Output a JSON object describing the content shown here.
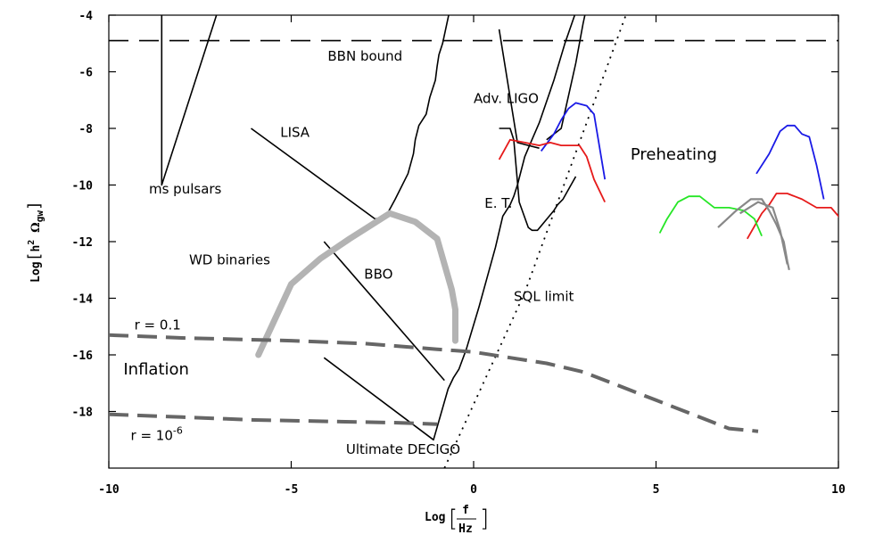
{
  "chart_data": {
    "type": "line",
    "xlabel": {
      "prefix": "Log",
      "numerator": "f",
      "denominator": "Hz"
    },
    "ylabel": {
      "prefix": "Log",
      "quantity": "h",
      "power": "2",
      "omega": "Ω",
      "subscript": "gw"
    },
    "xlim": [
      -10,
      10
    ],
    "ylim": [
      -20,
      -4
    ],
    "xticks": [
      -10,
      -5,
      0,
      5,
      10
    ],
    "yticks": [
      -18,
      -16,
      -14,
      -12,
      -10,
      -8,
      -6,
      -4
    ],
    "xtick_labels": [
      "-10",
      "-5",
      "0",
      "5",
      "10"
    ],
    "ytick_labels": [
      "-18",
      "-16",
      "-14",
      "-12",
      "-10",
      "-8",
      "-6",
      "-4"
    ],
    "grid": false,
    "annotations": [
      {
        "text": "BBN bound",
        "x": -4.0,
        "y": -5.6,
        "size": "normal"
      },
      {
        "text": "ms pulsars",
        "x": -8.9,
        "y": -10.3,
        "size": "normal"
      },
      {
        "text": "LISA",
        "x": -5.3,
        "y": -8.3,
        "size": "normal"
      },
      {
        "text": "WD binaries",
        "x": -7.8,
        "y": -12.8,
        "size": "normal"
      },
      {
        "text": "BBO",
        "x": -3.0,
        "y": -13.3,
        "size": "normal"
      },
      {
        "text": "Adv. LIGO",
        "x": 0.0,
        "y": -7.1,
        "size": "normal"
      },
      {
        "text": "E. T.",
        "x": 0.3,
        "y": -10.8,
        "size": "normal"
      },
      {
        "text": "Preheating",
        "x": 4.3,
        "y": -9.1,
        "size": "big"
      },
      {
        "text": "SQL limit",
        "x": 1.1,
        "y": -14.1,
        "size": "normal"
      },
      {
        "text": "r = 0.1",
        "x": -9.3,
        "y": -15.1,
        "size": "normal"
      },
      {
        "text": "Inflation",
        "x": -9.6,
        "y": -16.7,
        "size": "big"
      },
      {
        "text": "Ultimate DECIGO",
        "x": -3.5,
        "y": -19.5,
        "size": "normal"
      }
    ],
    "annotation_r6": {
      "prefix": "r = 10",
      "exponent": "-6",
      "x": -9.4,
      "y": -19.0
    },
    "series": [
      {
        "style": "dash-black",
        "points": [
          [
            -10,
            -4.9
          ],
          [
            10,
            -4.9
          ]
        ]
      },
      {
        "style": "black",
        "points": [
          [
            -8.55,
            -4.0
          ],
          [
            -8.55,
            -10.0
          ],
          [
            -7.05,
            -4.0
          ]
        ]
      },
      {
        "style": "black",
        "points": [
          [
            -6.1,
            -8.0
          ],
          [
            -2.7,
            -11.2
          ],
          [
            -2.4,
            -11.1
          ],
          [
            -2.15,
            -10.5
          ],
          [
            -1.8,
            -9.6
          ],
          [
            -1.65,
            -8.9
          ],
          [
            -1.6,
            -8.4
          ],
          [
            -1.5,
            -7.9
          ],
          [
            -1.3,
            -7.5
          ],
          [
            -1.2,
            -6.9
          ],
          [
            -1.05,
            -6.3
          ],
          [
            -1.0,
            -5.8
          ],
          [
            -0.95,
            -5.4
          ],
          [
            -0.85,
            -5.0
          ],
          [
            -0.75,
            -4.4
          ],
          [
            -0.65,
            -3.8
          ]
        ]
      },
      {
        "style": "black",
        "points": [
          [
            -4.1,
            -12.0
          ],
          [
            -0.8,
            -16.9
          ]
        ]
      },
      {
        "style": "black",
        "points": [
          [
            -4.1,
            -16.1
          ],
          [
            -1.1,
            -19.0
          ],
          [
            -0.7,
            -17.2
          ],
          [
            -0.55,
            -16.8
          ],
          [
            -0.4,
            -16.5
          ],
          [
            -0.2,
            -15.8
          ],
          [
            0.15,
            -14.3
          ],
          [
            0.6,
            -12.2
          ],
          [
            0.8,
            -11.1
          ],
          [
            1.0,
            -10.7
          ],
          [
            1.1,
            -10.4
          ],
          [
            1.2,
            -10.0
          ],
          [
            1.4,
            -9.0
          ],
          [
            1.6,
            -8.4
          ],
          [
            1.8,
            -7.8
          ],
          [
            2.2,
            -6.3
          ],
          [
            2.5,
            -5.0
          ],
          [
            2.85,
            -3.7
          ]
        ]
      },
      {
        "style": "black",
        "points": [
          [
            0.7,
            -8.0
          ],
          [
            1.0,
            -8.0
          ],
          [
            1.1,
            -8.4
          ],
          [
            1.25,
            -10.6
          ],
          [
            1.5,
            -11.5
          ],
          [
            1.6,
            -11.6
          ],
          [
            1.75,
            -11.6
          ],
          [
            2.2,
            -10.9
          ],
          [
            2.3,
            -10.7
          ],
          [
            2.45,
            -10.5
          ],
          [
            2.8,
            -9.7
          ],
          [
            2.8,
            -9.7
          ]
        ]
      },
      {
        "style": "black",
        "points": [
          [
            0.7,
            -4.5
          ],
          [
            1.2,
            -8.5
          ],
          [
            1.5,
            -8.6
          ],
          [
            1.8,
            -8.7
          ]
        ]
      },
      {
        "style": "black",
        "points": [
          [
            2.0,
            -8.4
          ],
          [
            2.4,
            -8.0
          ],
          [
            2.8,
            -5.7
          ],
          [
            3.0,
            -4.3
          ],
          [
            3.1,
            -3.7
          ]
        ]
      },
      {
        "style": "dot",
        "points": [
          [
            -0.8,
            -20.0
          ],
          [
            1.4,
            -13.8
          ],
          [
            4.2,
            -3.9
          ]
        ]
      },
      {
        "style": "gray-thick",
        "points": [
          [
            -5.9,
            -16.0
          ],
          [
            -5.0,
            -13.5
          ],
          [
            -4.2,
            -12.6
          ],
          [
            -3.4,
            -11.9
          ],
          [
            -2.3,
            -11.0
          ],
          [
            -1.6,
            -11.3
          ],
          [
            -1.0,
            -11.9
          ],
          [
            -0.8,
            -12.8
          ],
          [
            -0.6,
            -13.7
          ],
          [
            -0.5,
            -14.4
          ],
          [
            -0.5,
            -15.5
          ]
        ]
      },
      {
        "style": "gray-dash",
        "points": [
          [
            -10,
            -15.3
          ],
          [
            -8,
            -15.4
          ],
          [
            -5,
            -15.5
          ],
          [
            -3,
            -15.6
          ],
          [
            -1,
            -15.8
          ],
          [
            0,
            -15.9
          ],
          [
            1,
            -16.1
          ],
          [
            2,
            -16.3
          ],
          [
            3,
            -16.6
          ],
          [
            4,
            -17.1
          ],
          [
            5,
            -17.6
          ],
          [
            6,
            -18.1
          ],
          [
            7,
            -18.6
          ],
          [
            7.8,
            -18.7
          ]
        ]
      },
      {
        "style": "gray-dash",
        "points": [
          [
            -10,
            -18.1
          ],
          [
            -8,
            -18.2
          ],
          [
            -6,
            -18.3
          ],
          [
            -4,
            -18.35
          ],
          [
            -2,
            -18.4
          ],
          [
            -1,
            -18.45
          ]
        ]
      },
      {
        "style": "blue",
        "points": [
          [
            1.85,
            -8.8
          ],
          [
            2.2,
            -8.2
          ],
          [
            2.4,
            -7.7
          ],
          [
            2.6,
            -7.3
          ],
          [
            2.8,
            -7.1
          ],
          [
            3.1,
            -7.2
          ],
          [
            3.3,
            -7.5
          ],
          [
            3.6,
            -9.8
          ]
        ]
      },
      {
        "style": "red",
        "points": [
          [
            0.7,
            -9.1
          ],
          [
            1.0,
            -8.4
          ],
          [
            1.4,
            -8.5
          ],
          [
            1.8,
            -8.6
          ],
          [
            2.1,
            -8.5
          ],
          [
            2.4,
            -8.6
          ],
          [
            2.7,
            -8.6
          ],
          [
            2.9,
            -8.6
          ],
          [
            3.1,
            -9.0
          ],
          [
            3.3,
            -9.8
          ],
          [
            3.6,
            -10.6
          ]
        ]
      },
      {
        "style": "blue",
        "points": [
          [
            7.75,
            -9.6
          ],
          [
            8.1,
            -8.9
          ],
          [
            8.4,
            -8.1
          ],
          [
            8.6,
            -7.9
          ],
          [
            8.8,
            -7.9
          ],
          [
            9.0,
            -8.2
          ],
          [
            9.2,
            -8.3
          ],
          [
            9.4,
            -9.3
          ],
          [
            9.6,
            -10.5
          ]
        ]
      },
      {
        "style": "red",
        "points": [
          [
            7.5,
            -11.9
          ],
          [
            7.9,
            -11.0
          ],
          [
            8.1,
            -10.7
          ],
          [
            8.3,
            -10.3
          ],
          [
            8.6,
            -10.3
          ],
          [
            9.0,
            -10.5
          ],
          [
            9.4,
            -10.8
          ],
          [
            9.8,
            -10.8
          ],
          [
            10.0,
            -11.1
          ],
          [
            10.3,
            -11.8
          ]
        ]
      },
      {
        "style": "green",
        "points": [
          [
            5.1,
            -11.7
          ],
          [
            5.3,
            -11.2
          ],
          [
            5.6,
            -10.6
          ],
          [
            5.9,
            -10.4
          ],
          [
            6.2,
            -10.4
          ],
          [
            6.6,
            -10.8
          ],
          [
            7.0,
            -10.8
          ],
          [
            7.4,
            -10.9
          ],
          [
            7.7,
            -11.2
          ],
          [
            7.9,
            -11.8
          ]
        ]
      },
      {
        "style": "gray-thin",
        "points": [
          [
            6.7,
            -11.5
          ],
          [
            7.2,
            -10.9
          ],
          [
            7.6,
            -10.5
          ],
          [
            7.9,
            -10.5
          ],
          [
            8.1,
            -10.9
          ],
          [
            8.3,
            -11.4
          ],
          [
            8.5,
            -12.0
          ],
          [
            8.6,
            -12.7
          ],
          [
            8.65,
            -13.0
          ]
        ]
      },
      {
        "style": "gray-thin",
        "points": [
          [
            7.3,
            -11.0
          ],
          [
            7.8,
            -10.6
          ],
          [
            8.2,
            -10.8
          ],
          [
            8.4,
            -11.6
          ],
          [
            8.6,
            -12.8
          ]
        ]
      }
    ],
    "colors": {
      "black": "#000000",
      "blue": "#1a1ae6",
      "red": "#e61a1a",
      "green": "#26e626",
      "gray_thick": "#b3b3b3",
      "gray_dash": "#666666",
      "gray_thin": "#888888"
    }
  }
}
